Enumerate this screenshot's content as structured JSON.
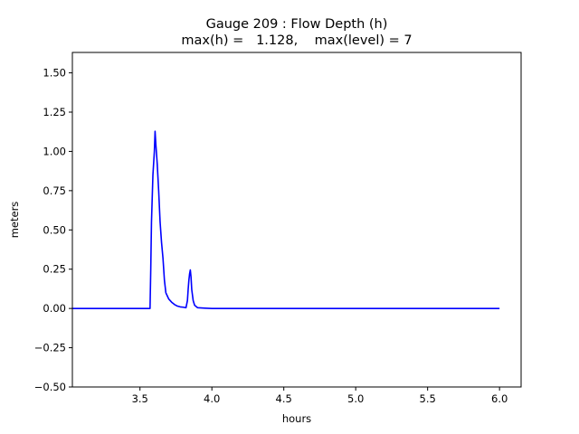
{
  "chart_data": {
    "type": "line",
    "title": "Gauge 209 : Flow Depth (h)",
    "subtitle": "max(h) =   1.128,    max(level) = 7",
    "xlabel": "hours",
    "ylabel": "meters",
    "xlim": [
      3.03,
      6.15
    ],
    "ylim": [
      -0.5,
      1.63
    ],
    "xticks": [
      3.5,
      4.0,
      4.5,
      5.0,
      5.5,
      6.0
    ],
    "xtick_labels": [
      "3.5",
      "4.0",
      "4.5",
      "5.0",
      "5.5",
      "6.0"
    ],
    "yticks": [
      -0.5,
      -0.25,
      0.0,
      0.25,
      0.5,
      0.75,
      1.0,
      1.25,
      1.5
    ],
    "ytick_labels": [
      "−0.50",
      "−0.25",
      "0.00",
      "0.25",
      "0.50",
      "0.75",
      "1.00",
      "1.25",
      "1.50"
    ],
    "grid": false,
    "line_color": "#0000ff",
    "series": [
      {
        "x": [
          3.03,
          3.2,
          3.4,
          3.55,
          3.57,
          3.575,
          3.58,
          3.59,
          3.6,
          3.605,
          3.61,
          3.62,
          3.63,
          3.64,
          3.65,
          3.66,
          3.67,
          3.68,
          3.69,
          3.7,
          3.72,
          3.74,
          3.76,
          3.78,
          3.8,
          3.82,
          3.83,
          3.835,
          3.84,
          3.845,
          3.85,
          3.855,
          3.86,
          3.87,
          3.88,
          3.9,
          3.95,
          4.0,
          4.5,
          5.0,
          5.5,
          6.0
        ],
        "y": [
          0.0,
          0.0,
          0.0,
          0.0,
          0.0,
          0.25,
          0.55,
          0.85,
          1.0,
          1.128,
          1.05,
          0.92,
          0.75,
          0.55,
          0.42,
          0.32,
          0.18,
          0.1,
          0.08,
          0.06,
          0.04,
          0.025,
          0.015,
          0.01,
          0.008,
          0.005,
          0.05,
          0.12,
          0.18,
          0.22,
          0.245,
          0.2,
          0.12,
          0.05,
          0.02,
          0.005,
          0.002,
          0.0,
          0.0,
          0.0,
          0.0,
          0.0
        ]
      }
    ]
  }
}
